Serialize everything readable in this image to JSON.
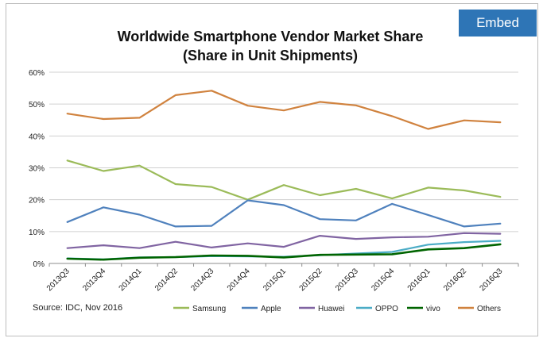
{
  "embed_label": "Embed",
  "source": "Source: IDC, Nov 2016",
  "chart_data": {
    "type": "line",
    "title_line1": "Worldwide Smartphone Vendor Market Share",
    "title_line2": "(Share in Unit Shipments)",
    "categories": [
      "2013Q3",
      "2013Q4",
      "2014Q1",
      "2014Q2",
      "2014Q3",
      "2014Q4",
      "2015Q1",
      "2015Q2",
      "2015Q3",
      "2015Q4",
      "2016Q1",
      "2016Q2",
      "2016Q3"
    ],
    "y_ticks": [
      "0%",
      "10%",
      "20%",
      "30%",
      "40%",
      "50%",
      "60%"
    ],
    "ylim": [
      0,
      60
    ],
    "grid": true,
    "legend_position": "bottom",
    "series": [
      {
        "name": "Samsung",
        "color": "#9bbb59",
        "values": [
          32.3,
          29.0,
          30.7,
          24.9,
          24.0,
          20.0,
          24.6,
          21.4,
          23.4,
          20.4,
          23.8,
          22.9,
          20.9
        ]
      },
      {
        "name": "Apple",
        "color": "#4f81bd",
        "values": [
          13.0,
          17.6,
          15.3,
          11.6,
          11.8,
          19.8,
          18.3,
          13.9,
          13.5,
          18.7,
          15.2,
          11.6,
          12.5
        ]
      },
      {
        "name": "Huawei",
        "color": "#8064a2",
        "values": [
          4.8,
          5.7,
          4.8,
          6.8,
          5.0,
          6.3,
          5.2,
          8.7,
          7.7,
          8.2,
          8.4,
          9.5,
          9.3
        ]
      },
      {
        "name": "OPPO",
        "color": "#4bacc6",
        "values": [
          1.6,
          1.3,
          1.9,
          2.0,
          2.3,
          2.2,
          2.1,
          2.6,
          3.1,
          3.6,
          5.9,
          6.7,
          7.1
        ]
      },
      {
        "name": "vivo",
        "color": "#006400",
        "values": [
          1.5,
          1.2,
          1.8,
          2.0,
          2.5,
          2.4,
          1.9,
          2.7,
          2.8,
          2.9,
          4.4,
          4.8,
          6.0
        ]
      },
      {
        "name": "Others",
        "color": "#d0823e",
        "values": [
          47.0,
          45.3,
          45.7,
          52.8,
          54.2,
          49.5,
          48.0,
          50.7,
          49.6,
          46.2,
          42.2,
          44.9,
          44.3
        ]
      }
    ]
  }
}
